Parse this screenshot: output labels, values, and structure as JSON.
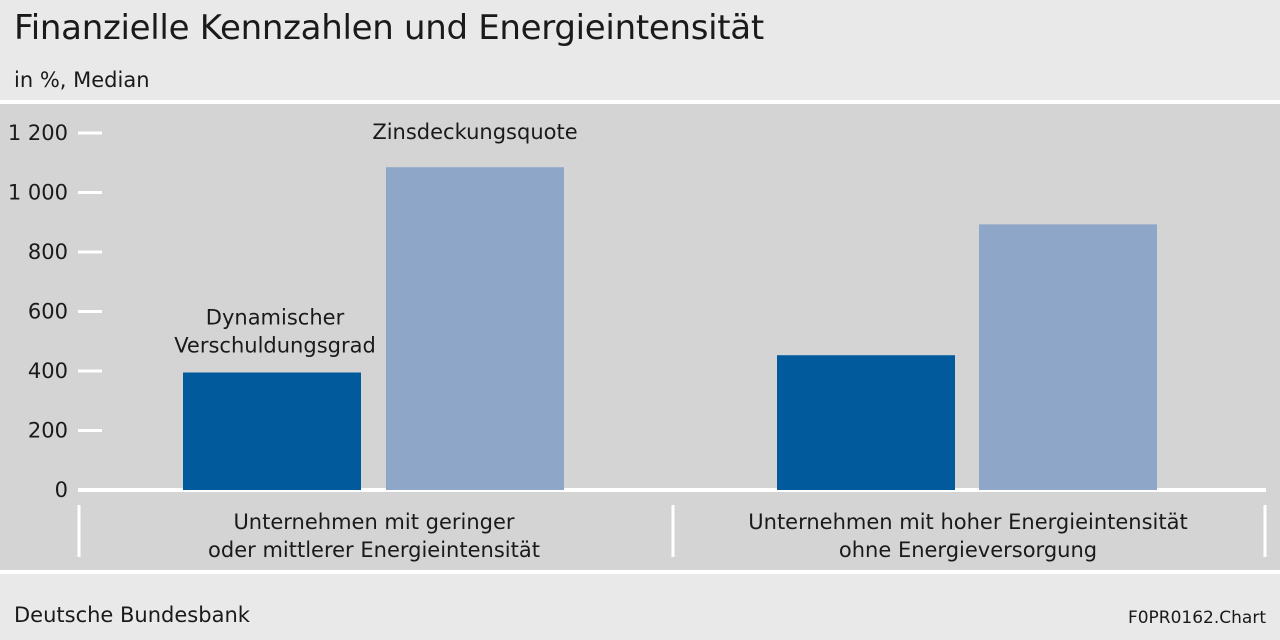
{
  "header": {
    "title": "Finanzielle Kennzahlen und Energieintensität",
    "subtitle": "in %, Median"
  },
  "footer": {
    "source": "Deutsche Bundesbank",
    "code": "F0PR0162.Chart"
  },
  "chart_data": {
    "type": "bar",
    "title": "Finanzielle Kennzahlen und Energieintensität",
    "subtitle": "in %, Median",
    "xlabel": "",
    "ylabel": "",
    "ylim": [
      0,
      1200
    ],
    "yticks": [
      0,
      200,
      400,
      600,
      800,
      1000,
      1200
    ],
    "ytick_labels": [
      "0",
      "200",
      "400",
      "600",
      "800",
      "1 000",
      "1 200"
    ],
    "grid": false,
    "legend": "none (series labelled directly above bars)",
    "categories": [
      [
        "Unternehmen mit geringer",
        "oder mittlerer Energieintensität"
      ],
      [
        "Unternehmen mit hoher Energieintensität",
        "ohne Energieversorgung"
      ]
    ],
    "series": [
      {
        "name": "Dynamischer Verschuldungsgrad",
        "label_lines": [
          "Dynamischer",
          "Verschuldungsgrad"
        ],
        "color": "#005a9b",
        "values": [
          395,
          453
        ]
      },
      {
        "name": "Zinsdeckungsquote",
        "label_lines": [
          "Zinsdeckungsquote"
        ],
        "color": "#8ea7c9",
        "values": [
          1085,
          893
        ]
      }
    ]
  }
}
